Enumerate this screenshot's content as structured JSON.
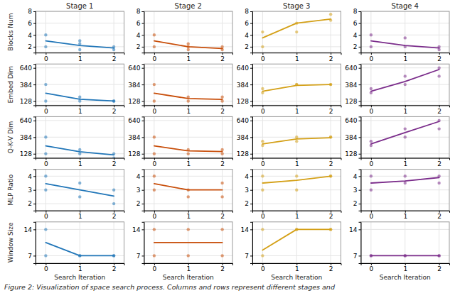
{
  "chart_data": [
    {
      "type": "line",
      "title": "Stage 1",
      "ylabel": "Blocks Num",
      "annotations": [
        "Figure 2: Visualization of space search process. Columns and rows represent different stages and"
      ],
      "x": [
        0,
        1,
        2
      ],
      "xlim": [
        -0.3,
        2.3
      ],
      "xticks": [
        0,
        1,
        2
      ],
      "ylim": [
        1,
        8
      ],
      "yticks": [
        2,
        4,
        6,
        8
      ],
      "grid": true,
      "series": [
        {
          "type": "line",
          "color": "#2176b8",
          "values": [
            3.0,
            2.2,
            1.8
          ]
        },
        {
          "type": "scatter",
          "color": "#2176b8",
          "x": [
            0,
            0,
            1,
            1,
            1,
            2,
            2
          ],
          "values": [
            4.0,
            2.0,
            3.0,
            1.5,
            2.5,
            2.0,
            1.5
          ]
        }
      ]
    },
    {
      "type": "line",
      "title": "Stage 2",
      "x": [
        0,
        1,
        2
      ],
      "xlim": [
        -0.3,
        2.3
      ],
      "xticks": [
        0,
        1,
        2
      ],
      "ylim": [
        1,
        8
      ],
      "yticks": [
        2,
        4,
        6,
        8
      ],
      "grid": true,
      "series": [
        {
          "type": "line",
          "color": "#c84e0a",
          "values": [
            3.0,
            2.0,
            1.7
          ]
        },
        {
          "type": "scatter",
          "color": "#c84e0a",
          "x": [
            0,
            0,
            1,
            1,
            1,
            2,
            2
          ],
          "values": [
            4.0,
            2.0,
            2.0,
            1.5,
            2.5,
            1.5,
            2.0
          ]
        }
      ]
    },
    {
      "type": "line",
      "title": "Stage 3",
      "x": [
        0,
        1,
        2
      ],
      "xlim": [
        -0.3,
        2.3
      ],
      "xticks": [
        0,
        1,
        2
      ],
      "ylim": [
        1,
        8
      ],
      "yticks": [
        2,
        4,
        6,
        8
      ],
      "grid": true,
      "series": [
        {
          "type": "line",
          "color": "#d4a017",
          "values": [
            3.5,
            6.0,
            6.7
          ]
        },
        {
          "type": "scatter",
          "color": "#d4a017",
          "x": [
            0,
            0,
            1,
            1,
            2,
            2
          ],
          "values": [
            2.0,
            4.5,
            4.5,
            6.0,
            6.5,
            7.5
          ]
        }
      ]
    },
    {
      "type": "line",
      "title": "Stage 4",
      "x": [
        0,
        1,
        2
      ],
      "xlim": [
        -0.3,
        2.3
      ],
      "xticks": [
        0,
        1,
        2
      ],
      "ylim": [
        1,
        8
      ],
      "yticks": [
        2,
        4,
        6,
        8
      ],
      "grid": true,
      "series": [
        {
          "type": "line",
          "color": "#7b2d8b",
          "values": [
            3.0,
            2.2,
            1.8
          ]
        },
        {
          "type": "scatter",
          "color": "#7b2d8b",
          "x": [
            0,
            0,
            1,
            1,
            2,
            2
          ],
          "values": [
            2.0,
            4.0,
            3.5,
            2.0,
            2.0,
            1.5
          ]
        }
      ]
    },
    {
      "type": "line",
      "ylabel": "Embed Dim",
      "x": [
        0,
        1,
        2
      ],
      "xlim": [
        -0.3,
        2.3
      ],
      "xticks": [
        0,
        1,
        2
      ],
      "ylim": [
        64,
        700
      ],
      "yticks": [
        128,
        384,
        640
      ],
      "grid": true,
      "series": [
        {
          "type": "line",
          "color": "#2176b8",
          "values": [
            250,
            158,
            130
          ]
        },
        {
          "type": "scatter",
          "color": "#2176b8",
          "x": [
            0,
            0,
            1,
            1,
            2,
            2
          ],
          "values": [
            128,
            384,
            128,
            192,
            128,
            128
          ]
        }
      ]
    },
    {
      "type": "line",
      "x": [
        0,
        1,
        2
      ],
      "xlim": [
        -0.3,
        2.3
      ],
      "xticks": [
        0,
        1,
        2
      ],
      "ylim": [
        64,
        700
      ],
      "yticks": [
        128,
        384,
        640
      ],
      "grid": true,
      "series": [
        {
          "type": "line",
          "color": "#c84e0a",
          "values": [
            250,
            168,
            155
          ]
        },
        {
          "type": "scatter",
          "color": "#c84e0a",
          "x": [
            0,
            0,
            1,
            1,
            2,
            2
          ],
          "values": [
            128,
            384,
            128,
            192,
            128,
            192
          ]
        }
      ]
    },
    {
      "type": "line",
      "x": [
        0,
        1,
        2
      ],
      "xlim": [
        -0.3,
        2.3
      ],
      "xticks": [
        0,
        1,
        2
      ],
      "ylim": [
        64,
        700
      ],
      "yticks": [
        128,
        384,
        640
      ],
      "grid": true,
      "series": [
        {
          "type": "line",
          "color": "#d4a017",
          "values": [
            280,
            370,
            385
          ]
        },
        {
          "type": "scatter",
          "color": "#d4a017",
          "x": [
            0,
            0,
            1,
            1,
            2,
            2
          ],
          "values": [
            256,
            320,
            384,
            384,
            384,
            384
          ]
        }
      ]
    },
    {
      "type": "line",
      "x": [
        0,
        1,
        2
      ],
      "xlim": [
        -0.3,
        2.3
      ],
      "xticks": [
        0,
        1,
        2
      ],
      "ylim": [
        64,
        700
      ],
      "yticks": [
        128,
        384,
        640
      ],
      "grid": true,
      "series": [
        {
          "type": "line",
          "color": "#7b2d8b",
          "values": [
            280,
            430,
            615
          ]
        },
        {
          "type": "scatter",
          "color": "#7b2d8b",
          "x": [
            0,
            0,
            1,
            1,
            2,
            2
          ],
          "values": [
            256,
            320,
            384,
            512,
            512,
            640
          ]
        }
      ]
    },
    {
      "type": "line",
      "ylabel": "Q-K-V Dim",
      "x": [
        0,
        1,
        2
      ],
      "xlim": [
        -0.3,
        2.3
      ],
      "xticks": [
        0,
        1,
        2
      ],
      "ylim": [
        64,
        700
      ],
      "yticks": [
        128,
        384,
        640
      ],
      "grid": true,
      "series": [
        {
          "type": "line",
          "color": "#2176b8",
          "values": [
            250,
            160,
            110
          ]
        },
        {
          "type": "scatter",
          "color": "#2176b8",
          "x": [
            0,
            0,
            1,
            1,
            2,
            2
          ],
          "values": [
            128,
            384,
            128,
            192,
            64,
            128
          ]
        }
      ]
    },
    {
      "type": "line",
      "x": [
        0,
        1,
        2
      ],
      "xlim": [
        -0.3,
        2.3
      ],
      "xticks": [
        0,
        1,
        2
      ],
      "ylim": [
        64,
        700
      ],
      "yticks": [
        128,
        384,
        640
      ],
      "grid": true,
      "series": [
        {
          "type": "line",
          "color": "#c84e0a",
          "values": [
            250,
            172,
            162
          ]
        },
        {
          "type": "scatter",
          "color": "#c84e0a",
          "x": [
            0,
            0,
            1,
            1,
            2,
            2
          ],
          "values": [
            128,
            384,
            128,
            192,
            128,
            192
          ]
        }
      ]
    },
    {
      "type": "line",
      "x": [
        0,
        1,
        2
      ],
      "xlim": [
        -0.3,
        2.3
      ],
      "xticks": [
        0,
        1,
        2
      ],
      "ylim": [
        64,
        700
      ],
      "yticks": [
        128,
        384,
        640
      ],
      "grid": true,
      "series": [
        {
          "type": "line",
          "color": "#d4a017",
          "values": [
            280,
            355,
            375
          ]
        },
        {
          "type": "scatter",
          "color": "#d4a017",
          "x": [
            0,
            0,
            1,
            1,
            2,
            2
          ],
          "values": [
            256,
            320,
            384,
            320,
            384,
            384
          ]
        }
      ]
    },
    {
      "type": "line",
      "x": [
        0,
        1,
        2
      ],
      "xlim": [
        -0.3,
        2.3
      ],
      "xticks": [
        0,
        1,
        2
      ],
      "ylim": [
        64,
        700
      ],
      "yticks": [
        128,
        384,
        640
      ],
      "grid": true,
      "series": [
        {
          "type": "line",
          "color": "#7b2d8b",
          "values": [
            280,
            455,
            625
          ]
        },
        {
          "type": "scatter",
          "color": "#7b2d8b",
          "x": [
            0,
            0,
            1,
            1,
            2,
            2
          ],
          "values": [
            256,
            320,
            384,
            512,
            512,
            640
          ]
        }
      ]
    },
    {
      "type": "line",
      "ylabel": "MLP Ratio",
      "x": [
        0,
        1,
        2
      ],
      "xlim": [
        -0.3,
        2.3
      ],
      "xticks": [
        0,
        1,
        2
      ],
      "ylim": [
        1.5,
        4.5
      ],
      "yticks": [
        2,
        3,
        4
      ],
      "grid": true,
      "series": [
        {
          "type": "line",
          "color": "#2176b8",
          "values": [
            3.45,
            3.0,
            2.55
          ]
        },
        {
          "type": "scatter",
          "color": "#2176b8",
          "x": [
            0,
            0,
            1,
            1,
            2,
            2
          ],
          "values": [
            4.0,
            3.0,
            3.5,
            2.5,
            3.0,
            2.0
          ]
        }
      ]
    },
    {
      "type": "line",
      "x": [
        0,
        1,
        2
      ],
      "xlim": [
        -0.3,
        2.3
      ],
      "xticks": [
        0,
        1,
        2
      ],
      "ylim": [
        1.5,
        4.5
      ],
      "yticks": [
        2,
        3,
        4
      ],
      "grid": true,
      "series": [
        {
          "type": "line",
          "color": "#c84e0a",
          "values": [
            3.45,
            3.0,
            3.0
          ]
        },
        {
          "type": "scatter",
          "color": "#c84e0a",
          "x": [
            0,
            0,
            1,
            1,
            2,
            2
          ],
          "values": [
            4.0,
            3.0,
            3.0,
            2.5,
            3.5,
            2.5
          ]
        }
      ]
    },
    {
      "type": "line",
      "x": [
        0,
        1,
        2
      ],
      "xlim": [
        -0.3,
        2.3
      ],
      "xticks": [
        0,
        1,
        2
      ],
      "ylim": [
        1.5,
        4.5
      ],
      "yticks": [
        2,
        3,
        4
      ],
      "grid": true,
      "series": [
        {
          "type": "line",
          "color": "#d4a017",
          "values": [
            3.5,
            3.7,
            4.0
          ]
        },
        {
          "type": "scatter",
          "color": "#d4a017",
          "x": [
            0,
            0,
            1,
            1,
            2,
            2
          ],
          "values": [
            4.0,
            3.0,
            4.0,
            3.0,
            4.0,
            4.0
          ]
        }
      ]
    },
    {
      "type": "line",
      "x": [
        0,
        1,
        2
      ],
      "xlim": [
        -0.3,
        2.3
      ],
      "xticks": [
        0,
        1,
        2
      ],
      "ylim": [
        1.5,
        4.5
      ],
      "yticks": [
        2,
        3,
        4
      ],
      "grid": true,
      "series": [
        {
          "type": "line",
          "color": "#7b2d8b",
          "values": [
            3.5,
            3.65,
            3.9
          ]
        },
        {
          "type": "scatter",
          "color": "#7b2d8b",
          "x": [
            0,
            0,
            1,
            1,
            2,
            2
          ],
          "values": [
            4.0,
            3.0,
            4.0,
            3.5,
            4.0,
            3.5
          ]
        }
      ]
    },
    {
      "type": "line",
      "ylabel": "Window Size",
      "xlabel": "Search Iteration",
      "x": [
        0,
        1,
        2
      ],
      "xlim": [
        -0.3,
        2.3
      ],
      "xticks": [
        0,
        1,
        2
      ],
      "ylim": [
        5,
        16
      ],
      "yticks": [
        7,
        14
      ],
      "grid": true,
      "series": [
        {
          "type": "line",
          "color": "#2176b8",
          "values": [
            10.5,
            7.0,
            7.0
          ]
        },
        {
          "type": "scatter",
          "color": "#2176b8",
          "x": [
            0,
            0,
            1,
            1,
            2,
            2
          ],
          "values": [
            14.0,
            7.0,
            7.0,
            7.0,
            7.0,
            7.0
          ]
        }
      ]
    },
    {
      "type": "line",
      "xlabel": "Search Iteration",
      "x": [
        0,
        1,
        2
      ],
      "xlim": [
        -0.3,
        2.3
      ],
      "xticks": [
        0,
        1,
        2
      ],
      "ylim": [
        5,
        16
      ],
      "yticks": [
        7,
        14
      ],
      "grid": true,
      "series": [
        {
          "type": "line",
          "color": "#c84e0a",
          "values": [
            10.5,
            10.5,
            10.5
          ]
        },
        {
          "type": "scatter",
          "color": "#c84e0a",
          "x": [
            0,
            0,
            1,
            1,
            2,
            2
          ],
          "values": [
            14.0,
            7.0,
            14.0,
            7.0,
            14.0,
            7.0
          ]
        }
      ]
    },
    {
      "type": "line",
      "xlabel": "Search Iteration",
      "x": [
        0,
        1,
        2
      ],
      "xlim": [
        -0.3,
        2.3
      ],
      "xticks": [
        0,
        1,
        2
      ],
      "ylim": [
        5,
        16
      ],
      "yticks": [
        7,
        14
      ],
      "grid": true,
      "series": [
        {
          "type": "line",
          "color": "#d4a017",
          "values": [
            8.5,
            14.0,
            14.0
          ]
        },
        {
          "type": "scatter",
          "color": "#d4a017",
          "x": [
            0,
            0,
            1,
            1,
            2,
            2
          ],
          "values": [
            7.0,
            14.0,
            14.0,
            14.0,
            14.0,
            14.0
          ]
        }
      ]
    },
    {
      "type": "line",
      "xlabel": "Search Iteration",
      "x": [
        0,
        1,
        2
      ],
      "xlim": [
        -0.3,
        2.3
      ],
      "xticks": [
        0,
        1,
        2
      ],
      "ylim": [
        5,
        16
      ],
      "yticks": [
        7,
        14
      ],
      "grid": true,
      "series": [
        {
          "type": "line",
          "color": "#7b2d8b",
          "values": [
            7.0,
            7.0,
            7.0
          ]
        },
        {
          "type": "scatter",
          "color": "#7b2d8b",
          "x": [
            0,
            0,
            1,
            1,
            2,
            2
          ],
          "values": [
            7.0,
            7.0,
            7.0,
            7.0,
            7.0,
            7.0
          ]
        }
      ]
    }
  ]
}
